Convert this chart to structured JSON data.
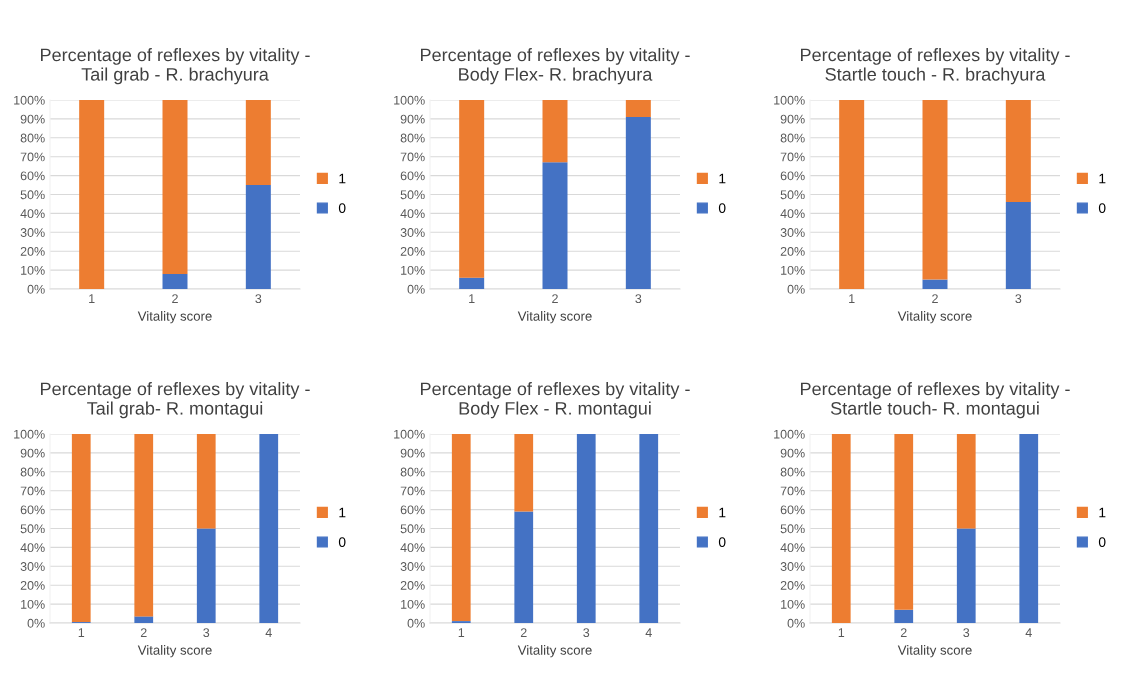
{
  "chart_data": [
    {
      "type": "bar",
      "stacked": true,
      "title": "Percentage of reflexes by vitality -\nTail grab - R. brachyura",
      "xlabel": "Vitality score",
      "categories": [
        "1",
        "2",
        "3"
      ],
      "ylim": [
        0,
        100
      ],
      "yticks": [
        {
          "value": 0,
          "label": "0%"
        },
        {
          "value": 10,
          "label": "10%"
        },
        {
          "value": 20,
          "label": "20%"
        },
        {
          "value": 30,
          "label": "30%"
        },
        {
          "value": 40,
          "label": "40%"
        },
        {
          "value": 50,
          "label": "50%"
        },
        {
          "value": 60,
          "label": "60%"
        },
        {
          "value": 70,
          "label": "70%"
        },
        {
          "value": 80,
          "label": "80%"
        },
        {
          "value": 90,
          "label": "90%"
        },
        {
          "value": 100,
          "label": "100%"
        }
      ],
      "grid": "y",
      "legend": "right",
      "series": [
        {
          "name": "0",
          "color": "#4472c4",
          "values": [
            0,
            8,
            55
          ]
        },
        {
          "name": "1",
          "color": "#ed7d31",
          "values": [
            100,
            92,
            45
          ]
        }
      ]
    },
    {
      "type": "bar",
      "stacked": true,
      "title": "Percentage of reflexes by vitality -\nBody Flex- R. brachyura",
      "xlabel": "Vitality score",
      "categories": [
        "1",
        "2",
        "3"
      ],
      "ylim": [
        0,
        100
      ],
      "yticks": [
        {
          "value": 0,
          "label": "0%"
        },
        {
          "value": 10,
          "label": "10%"
        },
        {
          "value": 20,
          "label": "20%"
        },
        {
          "value": 30,
          "label": "30%"
        },
        {
          "value": 40,
          "label": "40%"
        },
        {
          "value": 50,
          "label": "50%"
        },
        {
          "value": 60,
          "label": "60%"
        },
        {
          "value": 70,
          "label": "70%"
        },
        {
          "value": 80,
          "label": "80%"
        },
        {
          "value": 90,
          "label": "90%"
        },
        {
          "value": 100,
          "label": "100%"
        }
      ],
      "grid": "y",
      "legend": "right",
      "series": [
        {
          "name": "0",
          "color": "#4472c4",
          "values": [
            6,
            67,
            91
          ]
        },
        {
          "name": "1",
          "color": "#ed7d31",
          "values": [
            94,
            33,
            9
          ]
        }
      ]
    },
    {
      "type": "bar",
      "stacked": true,
      "title": "Percentage of reflexes by vitality -\nStartle touch - R. brachyura",
      "xlabel": "Vitality score",
      "categories": [
        "1",
        "2",
        "3"
      ],
      "ylim": [
        0,
        100
      ],
      "yticks": [
        {
          "value": 0,
          "label": "0%"
        },
        {
          "value": 10,
          "label": "10%"
        },
        {
          "value": 20,
          "label": "20%"
        },
        {
          "value": 30,
          "label": "30%"
        },
        {
          "value": 40,
          "label": "40%"
        },
        {
          "value": 50,
          "label": "50%"
        },
        {
          "value": 60,
          "label": "60%"
        },
        {
          "value": 70,
          "label": "70%"
        },
        {
          "value": 80,
          "label": "80%"
        },
        {
          "value": 90,
          "label": "90%"
        },
        {
          "value": 100,
          "label": "100%"
        }
      ],
      "grid": "y",
      "legend": "right",
      "series": [
        {
          "name": "0",
          "color": "#4472c4",
          "values": [
            0,
            5,
            46
          ]
        },
        {
          "name": "1",
          "color": "#ed7d31",
          "values": [
            100,
            95,
            54
          ]
        }
      ]
    },
    {
      "type": "bar",
      "stacked": true,
      "title": "Percentage of reflexes by vitality -\nTail grab- R. montagui",
      "xlabel": "Vitality score",
      "categories": [
        "1",
        "2",
        "3",
        "4"
      ],
      "ylim": [
        0,
        100
      ],
      "yticks": [
        {
          "value": 0,
          "label": "0%"
        },
        {
          "value": 10,
          "label": "10%"
        },
        {
          "value": 20,
          "label": "20%"
        },
        {
          "value": 30,
          "label": "30%"
        },
        {
          "value": 40,
          "label": "40%"
        },
        {
          "value": 50,
          "label": "50%"
        },
        {
          "value": 60,
          "label": "60%"
        },
        {
          "value": 70,
          "label": "70%"
        },
        {
          "value": 80,
          "label": "80%"
        },
        {
          "value": 90,
          "label": "90%"
        },
        {
          "value": 100,
          "label": "100%"
        }
      ],
      "grid": "y",
      "legend": "right",
      "series": [
        {
          "name": "0",
          "color": "#4472c4",
          "values": [
            0.5,
            3.5,
            50,
            100
          ]
        },
        {
          "name": "1",
          "color": "#ed7d31",
          "values": [
            99.5,
            96.5,
            50,
            0
          ]
        }
      ]
    },
    {
      "type": "bar",
      "stacked": true,
      "title": "Percentage of reflexes by vitality -\nBody Flex - R. montagui",
      "xlabel": "Vitality score",
      "categories": [
        "1",
        "2",
        "3",
        "4"
      ],
      "ylim": [
        0,
        100
      ],
      "yticks": [
        {
          "value": 0,
          "label": "0%"
        },
        {
          "value": 10,
          "label": "10%"
        },
        {
          "value": 20,
          "label": "20%"
        },
        {
          "value": 30,
          "label": "30%"
        },
        {
          "value": 40,
          "label": "40%"
        },
        {
          "value": 50,
          "label": "50%"
        },
        {
          "value": 60,
          "label": "60%"
        },
        {
          "value": 70,
          "label": "70%"
        },
        {
          "value": 80,
          "label": "80%"
        },
        {
          "value": 90,
          "label": "90%"
        },
        {
          "value": 100,
          "label": "100%"
        }
      ],
      "grid": "y",
      "legend": "right",
      "series": [
        {
          "name": "0",
          "color": "#4472c4",
          "values": [
            1,
            59,
            100,
            100
          ]
        },
        {
          "name": "1",
          "color": "#ed7d31",
          "values": [
            99,
            41,
            0,
            0
          ]
        }
      ]
    },
    {
      "type": "bar",
      "stacked": true,
      "title": "Percentage of reflexes by vitality -\nStartle touch- R. montagui",
      "xlabel": "Vitality score",
      "categories": [
        "1",
        "2",
        "3",
        "4"
      ],
      "ylim": [
        0,
        100
      ],
      "yticks": [
        {
          "value": 0,
          "label": "0%"
        },
        {
          "value": 10,
          "label": "10%"
        },
        {
          "value": 20,
          "label": "20%"
        },
        {
          "value": 30,
          "label": "30%"
        },
        {
          "value": 40,
          "label": "40%"
        },
        {
          "value": 50,
          "label": "50%"
        },
        {
          "value": 60,
          "label": "60%"
        },
        {
          "value": 70,
          "label": "70%"
        },
        {
          "value": 80,
          "label": "80%"
        },
        {
          "value": 90,
          "label": "90%"
        },
        {
          "value": 100,
          "label": "100%"
        }
      ],
      "grid": "y",
      "legend": "right",
      "series": [
        {
          "name": "0",
          "color": "#4472c4",
          "values": [
            0,
            7,
            50,
            100
          ]
        },
        {
          "name": "1",
          "color": "#ed7d31",
          "values": [
            100,
            93,
            50,
            0
          ]
        }
      ]
    }
  ]
}
